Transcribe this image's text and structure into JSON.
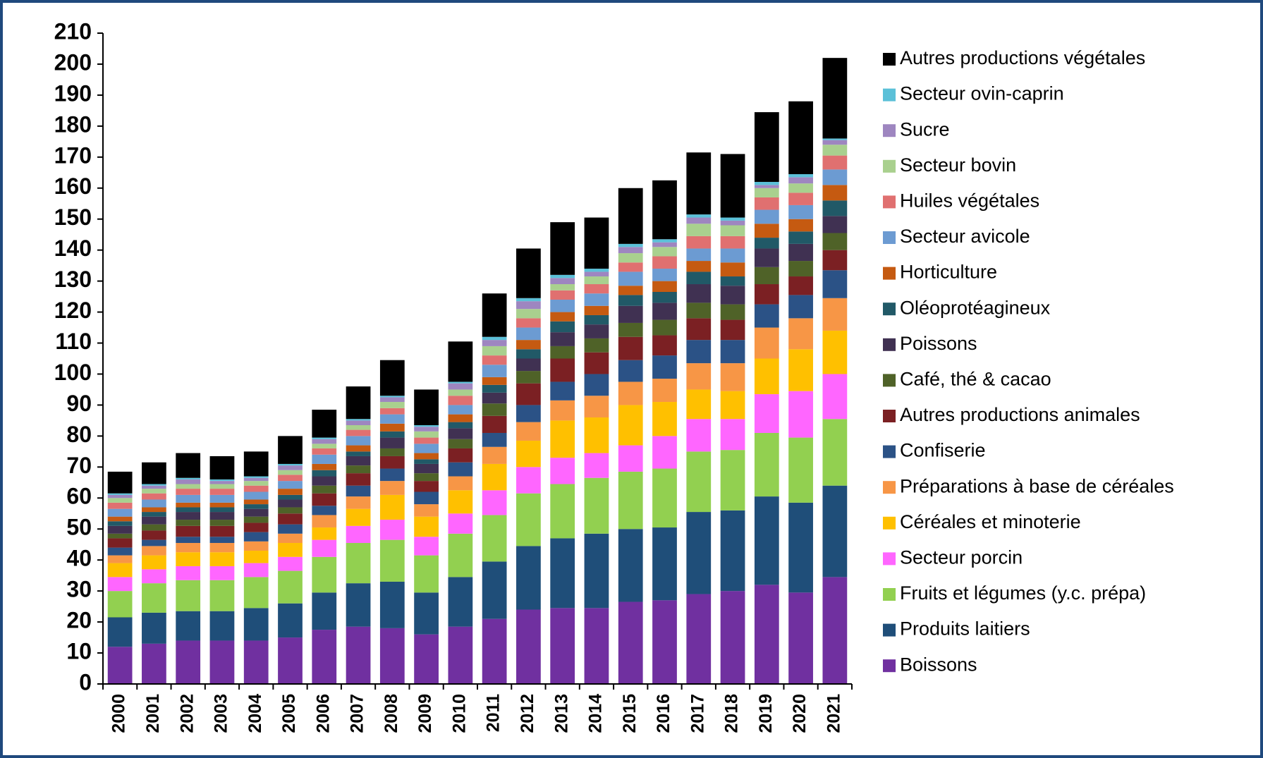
{
  "chart_data": {
    "type": "stacked_bar",
    "categories": [
      "2000",
      "2001",
      "2002",
      "2003",
      "2004",
      "2005",
      "2006",
      "2007",
      "2008",
      "2009",
      "2010",
      "2011",
      "2012",
      "2013",
      "2014",
      "2015",
      "2016",
      "2017",
      "2018",
      "2019",
      "2020",
      "2021"
    ],
    "ylim": [
      0,
      210
    ],
    "yticks": [
      0,
      10,
      20,
      30,
      40,
      50,
      60,
      70,
      80,
      90,
      100,
      110,
      120,
      130,
      140,
      150,
      160,
      170,
      180,
      190,
      200,
      210
    ],
    "series": [
      {
        "name": "Boissons",
        "color": "#7030a0",
        "values": [
          12,
          13,
          14,
          14,
          14,
          15,
          17.5,
          18.5,
          18,
          16,
          18.5,
          21,
          24,
          24.5,
          24.5,
          26.5,
          27,
          29,
          30,
          32,
          29.5,
          34.5
        ]
      },
      {
        "name": "Produits laitiers",
        "color": "#1f4e79",
        "values": [
          9.5,
          10,
          9.5,
          9.5,
          10.5,
          11,
          12,
          14,
          15,
          13.5,
          16,
          18.5,
          20.5,
          22.5,
          24,
          23.5,
          23.5,
          26.5,
          26,
          28.5,
          29,
          29.5
        ]
      },
      {
        "name": "Fruits et légumes (y.c. prépa)",
        "color": "#92d050",
        "values": [
          8.5,
          9.5,
          10,
          10,
          10,
          10.5,
          11.5,
          13,
          13.5,
          12,
          14,
          15,
          17,
          17.5,
          18,
          18.5,
          19,
          19.5,
          19.5,
          20.5,
          21,
          21.5
        ]
      },
      {
        "name": "Secteur porcin",
        "color": "#ff66ff",
        "values": [
          4.5,
          4.5,
          4.5,
          4.5,
          4.5,
          4.5,
          5.5,
          5.5,
          6.5,
          6,
          6.5,
          8,
          8.5,
          8.5,
          8,
          8.5,
          10.5,
          10.5,
          10,
          12.5,
          15,
          14.5
        ]
      },
      {
        "name": "Céréales et minoterie",
        "color": "#ffc000",
        "values": [
          4.5,
          4.5,
          4.5,
          4.5,
          4,
          4.5,
          4,
          5.5,
          8,
          6.5,
          7.5,
          8.5,
          8.5,
          12,
          11.5,
          13,
          11,
          9.5,
          9,
          11.5,
          13.5,
          14
        ]
      },
      {
        "name": "Préparations à base de céréales",
        "color": "#f79646",
        "values": [
          2.5,
          3,
          3,
          3,
          3,
          3,
          4,
          4,
          4.5,
          4,
          4.5,
          5.5,
          6,
          6.5,
          7,
          7.5,
          7.5,
          8.5,
          9,
          10,
          10,
          10.5
        ]
      },
      {
        "name": "Confiserie",
        "color": "#2b5286",
        "values": [
          2.5,
          2,
          2,
          2,
          3,
          3,
          3,
          3.5,
          4,
          4,
          4.5,
          4.5,
          5.5,
          6,
          7,
          7,
          7.5,
          7.5,
          7.5,
          7.5,
          7.5,
          9
        ]
      },
      {
        "name": "Autres productions animales",
        "color": "#7b2023",
        "values": [
          3,
          3,
          3.5,
          3.5,
          3,
          3.5,
          4,
          4,
          4,
          3.5,
          4.5,
          5.5,
          7,
          7.5,
          7,
          7.5,
          6.5,
          7,
          6.5,
          6.5,
          6,
          6.5
        ]
      },
      {
        "name": "Café, thé & cacao",
        "color": "#4f6228",
        "values": [
          1.5,
          2,
          2,
          2,
          2,
          2,
          2.5,
          2.5,
          2.5,
          2.5,
          3,
          4,
          4,
          4,
          4.5,
          4.5,
          5,
          5,
          5,
          5.5,
          5,
          5.5
        ]
      },
      {
        "name": "Poissons",
        "color": "#403152",
        "values": [
          2.5,
          2.5,
          2.5,
          2.5,
          2.5,
          2.5,
          3,
          3,
          3.5,
          3,
          3.5,
          3.5,
          4,
          4.5,
          4.5,
          5.5,
          5.5,
          6,
          6,
          6,
          5.5,
          5.5
        ]
      },
      {
        "name": "Oléoprotéagineux",
        "color": "#215967",
        "values": [
          1.5,
          1.5,
          1.5,
          1.5,
          1.5,
          1.5,
          2,
          1.5,
          2,
          1.5,
          2,
          2.5,
          3,
          3.5,
          3,
          3.5,
          3.5,
          4,
          3,
          3.5,
          4,
          5
        ]
      },
      {
        "name": "Horticulture",
        "color": "#c55a11",
        "values": [
          1.5,
          1.5,
          1.5,
          1.5,
          1.5,
          2,
          2,
          2,
          2.5,
          2,
          2.5,
          2.5,
          3,
          3,
          3,
          3,
          3.5,
          3.5,
          4.5,
          4.5,
          4,
          5
        ]
      },
      {
        "name": "Secteur avicole",
        "color": "#6c9bd2",
        "values": [
          2.5,
          2.5,
          2.5,
          2.5,
          2.5,
          2.5,
          3,
          3,
          3,
          3,
          3,
          4,
          4,
          4,
          4,
          4.5,
          4,
          4,
          4.5,
          4.5,
          4.5,
          5
        ]
      },
      {
        "name": "Huiles végétales",
        "color": "#e07070",
        "values": [
          2,
          2,
          2,
          2,
          2,
          2,
          2,
          2,
          2,
          2,
          3,
          3,
          3,
          3,
          3,
          3,
          4,
          4,
          4,
          4,
          4,
          4.5
        ]
      },
      {
        "name": "Secteur bovin",
        "color": "#a9d08e",
        "values": [
          1.5,
          1.5,
          1.5,
          1.5,
          1.5,
          1.5,
          1.5,
          1.5,
          2,
          2,
          2,
          3,
          3,
          2,
          2.5,
          3,
          3,
          4,
          3.5,
          3,
          3,
          3.5
        ]
      },
      {
        "name": "Sucre",
        "color": "#9e86c0",
        "values": [
          1,
          1,
          1.5,
          1,
          1,
          1.5,
          1.5,
          1.5,
          1.5,
          1.5,
          2,
          2,
          2.5,
          2,
          1.5,
          2,
          1.5,
          2,
          1.5,
          1,
          2,
          1.5
        ]
      },
      {
        "name": "Secteur ovin-caprin",
        "color": "#5bc0d8",
        "values": [
          0.5,
          0.5,
          0.5,
          0.5,
          0.5,
          0.5,
          0.5,
          0.5,
          0.5,
          0.5,
          0.5,
          1,
          1,
          1,
          1,
          1,
          1,
          1,
          1,
          1,
          1,
          0.5
        ]
      },
      {
        "name": "Autres productions végétales",
        "color": "#000000",
        "values": [
          7,
          7,
          8,
          7.5,
          8,
          9,
          9,
          10.5,
          11.5,
          11.5,
          13,
          14,
          16,
          17,
          16.5,
          18,
          19,
          20,
          20.5,
          22.5,
          23.5,
          26
        ]
      }
    ]
  }
}
